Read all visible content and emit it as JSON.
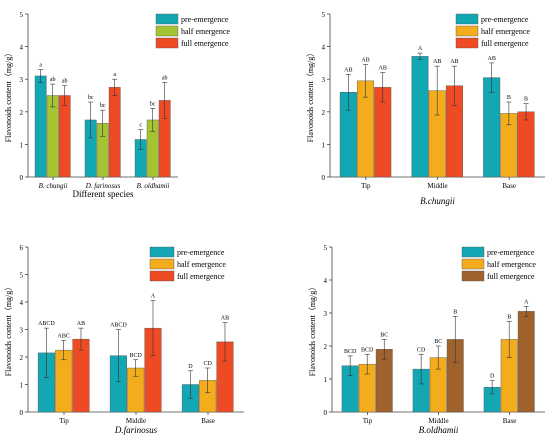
{
  "legend": [
    "pre-emergence",
    "half emergence",
    "full emergence"
  ],
  "chart_data": [
    {
      "type": "bar",
      "title": "",
      "ylabel": "Flavonoids content（mg/g）",
      "xlabel": "Different species",
      "categories": [
        "B. chungii",
        "D. farinosus",
        "B. oldhamii"
      ],
      "ylim": [
        0,
        5
      ],
      "yticks": [
        "0",
        "1",
        "2",
        "3",
        "4",
        "5"
      ],
      "series": [
        {
          "name": "pre-emergence",
          "values": [
            3.1,
            1.75,
            1.15
          ],
          "errors": [
            0.2,
            0.55,
            0.3
          ],
          "letters": [
            "a",
            "bc",
            "c"
          ]
        },
        {
          "name": "half emergence",
          "values": [
            2.5,
            1.65,
            1.75
          ],
          "errors": [
            0.35,
            0.4,
            0.35
          ],
          "letters": [
            "ab",
            "bc",
            "bc"
          ]
        },
        {
          "name": "full emergence",
          "values": [
            2.5,
            2.75,
            2.35
          ],
          "errors": [
            0.3,
            0.25,
            0.55
          ],
          "letters": [
            "ab",
            "a",
            "ab"
          ]
        }
      ],
      "colors": [
        "#13a6b3",
        "#a4c434",
        "#ee4a24"
      ],
      "legend_position": "top-right"
    },
    {
      "type": "bar",
      "title": "",
      "ylabel": "Flavonoids content（mg/g）",
      "xlabel": "B.chungii",
      "categories": [
        "Tip",
        "Middle",
        "Base"
      ],
      "ylim": [
        0,
        5
      ],
      "yticks": [
        "0",
        "1",
        "2",
        "3",
        "4",
        "5"
      ],
      "series": [
        {
          "name": "pre-emergence",
          "values": [
            2.6,
            3.7,
            3.05
          ],
          "errors": [
            0.55,
            0.1,
            0.45
          ],
          "letters": [
            "AB",
            "A",
            "AB"
          ]
        },
        {
          "name": "half emergence",
          "values": [
            2.95,
            2.65,
            1.95
          ],
          "errors": [
            0.5,
            0.75,
            0.35
          ],
          "letters": [
            "AB",
            "AB",
            "B"
          ]
        },
        {
          "name": "full emergence",
          "values": [
            2.75,
            2.8,
            2.0
          ],
          "errors": [
            0.45,
            0.6,
            0.25
          ],
          "letters": [
            "AB",
            "AB",
            "B"
          ]
        }
      ],
      "colors": [
        "#13a6b3",
        "#f2ac1c",
        "#ee4a24"
      ],
      "legend_position": "top-right"
    },
    {
      "type": "bar",
      "title": "",
      "ylabel": "Flavonoids content（mg/g）",
      "xlabel": "D.farinosus",
      "categories": [
        "Tip",
        "Middle",
        "Base"
      ],
      "ylim": [
        0,
        6
      ],
      "yticks": [
        "0",
        "1",
        "2",
        "3",
        "4",
        "5",
        "6"
      ],
      "series": [
        {
          "name": "pre-emergence",
          "values": [
            2.15,
            2.05,
            1.0
          ],
          "errors": [
            0.9,
            0.95,
            0.5
          ],
          "letters": [
            "ABCD",
            "ABCD",
            "D"
          ]
        },
        {
          "name": "half emergence",
          "values": [
            2.25,
            1.6,
            1.15
          ],
          "errors": [
            0.35,
            0.3,
            0.45
          ],
          "letters": [
            "ABC",
            "BCD",
            "CD"
          ]
        },
        {
          "name": "full emergence",
          "values": [
            2.65,
            3.05,
            2.55
          ],
          "errors": [
            0.4,
            1.0,
            0.7
          ],
          "letters": [
            "AB",
            "A",
            "AB"
          ]
        }
      ],
      "colors": [
        "#13a6b3",
        "#f2ac1c",
        "#ee4a24"
      ],
      "legend_position": "top-right"
    },
    {
      "type": "bar",
      "title": "",
      "ylabel": "Flavonoids content（mg/g）",
      "xlabel": "B.oldhamii",
      "categories": [
        "Tip",
        "Middle",
        "Base"
      ],
      "ylim": [
        0,
        5
      ],
      "yticks": [
        "0",
        "1",
        "2",
        "3",
        "4",
        "5"
      ],
      "series": [
        {
          "name": "pre-emergence",
          "values": [
            1.4,
            1.3,
            0.75
          ],
          "errors": [
            0.3,
            0.45,
            0.2
          ],
          "letters": [
            "BCD",
            "CD",
            "D"
          ]
        },
        {
          "name": "half emergence",
          "values": [
            1.45,
            1.65,
            2.2
          ],
          "errors": [
            0.3,
            0.35,
            0.55
          ],
          "letters": [
            "BCD",
            "BC",
            "B"
          ]
        },
        {
          "name": "full emergence",
          "values": [
            1.9,
            2.2,
            3.05
          ],
          "errors": [
            0.3,
            0.7,
            0.15
          ],
          "letters": [
            "BC",
            "B",
            "A"
          ]
        }
      ],
      "colors": [
        "#13a6b3",
        "#f2ac1c",
        "#a0622c"
      ],
      "legend_position": "top-right"
    }
  ]
}
